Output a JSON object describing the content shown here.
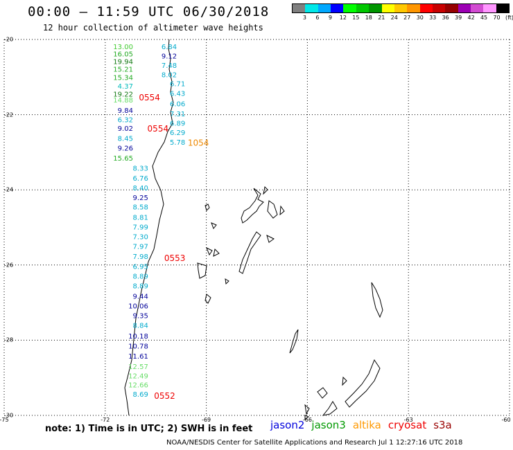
{
  "header": {
    "title": "00:00 – 11:59 UTC 06/30/2018",
    "subtitle": "12 hour collection of altimeter wave heights"
  },
  "legend": {
    "colors": [
      "#808080",
      "#00e8e8",
      "#00a8ff",
      "#0000ff",
      "#00ff00",
      "#00c800",
      "#009600",
      "#ffff00",
      "#ffc800",
      "#ff9600",
      "#ff0000",
      "#c80000",
      "#960000",
      "#9c00b4",
      "#d24cd2",
      "#ff96ff",
      "#000000"
    ],
    "labels": [
      "3",
      "6",
      "9",
      "12",
      "15",
      "18",
      "21",
      "24",
      "27",
      "30",
      "33",
      "36",
      "39",
      "42",
      "45",
      "70",
      "(ft)"
    ]
  },
  "axes": {
    "lat_ticks": [
      "-20",
      "-22",
      "-24",
      "-26",
      "-28",
      "-30"
    ],
    "lon_ticks": [
      "-75",
      "-72",
      "-69",
      "-66",
      "-63",
      "-60"
    ]
  },
  "observations": [
    {
      "lat": -20.18,
      "lon": -71.75,
      "value": "13.00",
      "color": "#44cc33"
    },
    {
      "lat": -20.38,
      "lon": -71.75,
      "value": "16.05",
      "color": "#22aa22"
    },
    {
      "lat": -20.58,
      "lon": -71.75,
      "value": "19.94",
      "color": "#117711"
    },
    {
      "lat": -20.78,
      "lon": -71.75,
      "value": "15.21",
      "color": "#22aa22"
    },
    {
      "lat": -21.0,
      "lon": -71.75,
      "value": "15.34",
      "color": "#22aa22"
    },
    {
      "lat": -21.23,
      "lon": -71.75,
      "value": "4.37",
      "color": "#00bbbb"
    },
    {
      "lat": -21.45,
      "lon": -71.75,
      "value": "19.22",
      "color": "#117711"
    },
    {
      "lat": -21.6,
      "lon": -71.75,
      "value": "14.88",
      "color": "#66dd66"
    },
    {
      "lat": -21.88,
      "lon": -71.75,
      "value": "9.84",
      "color": "#000099"
    },
    {
      "lat": -22.13,
      "lon": -71.75,
      "value": "6.32",
      "color": "#00aacc"
    },
    {
      "lat": -22.36,
      "lon": -71.75,
      "value": "9.02",
      "color": "#000099"
    },
    {
      "lat": -22.62,
      "lon": -71.75,
      "value": "8.45",
      "color": "#00aacc"
    },
    {
      "lat": -22.88,
      "lon": -71.75,
      "value": "9.26",
      "color": "#000099"
    },
    {
      "lat": -23.15,
      "lon": -71.75,
      "value": "15.65",
      "color": "#22aa22"
    },
    {
      "lat": -23.42,
      "lon": -71.3,
      "value": "8.33",
      "color": "#00aacc"
    },
    {
      "lat": -23.68,
      "lon": -71.3,
      "value": "6.76",
      "color": "#00aacc"
    },
    {
      "lat": -23.94,
      "lon": -71.3,
      "value": "8.40",
      "color": "#00aacc"
    },
    {
      "lat": -24.2,
      "lon": -71.3,
      "value": "9.25",
      "color": "#000099"
    },
    {
      "lat": -24.45,
      "lon": -71.3,
      "value": "8.58",
      "color": "#00aacc"
    },
    {
      "lat": -24.72,
      "lon": -71.3,
      "value": "8.81",
      "color": "#00aacc"
    },
    {
      "lat": -24.98,
      "lon": -71.3,
      "value": "7.99",
      "color": "#00aacc"
    },
    {
      "lat": -25.24,
      "lon": -71.3,
      "value": "7.30",
      "color": "#00aacc"
    },
    {
      "lat": -25.5,
      "lon": -71.3,
      "value": "7.97",
      "color": "#00aacc"
    },
    {
      "lat": -25.76,
      "lon": -71.3,
      "value": "7.98",
      "color": "#00aacc"
    },
    {
      "lat": -26.03,
      "lon": -71.3,
      "value": "6.95",
      "color": "#00aacc"
    },
    {
      "lat": -26.29,
      "lon": -71.3,
      "value": "8.89",
      "color": "#00aacc"
    },
    {
      "lat": -26.55,
      "lon": -71.3,
      "value": "8.89",
      "color": "#00aacc"
    },
    {
      "lat": -26.82,
      "lon": -71.3,
      "value": "9.44",
      "color": "#000099"
    },
    {
      "lat": -27.08,
      "lon": -71.3,
      "value": "10.06",
      "color": "#000099"
    },
    {
      "lat": -27.34,
      "lon": -71.3,
      "value": "9.35",
      "color": "#000099"
    },
    {
      "lat": -27.6,
      "lon": -71.3,
      "value": "8.84",
      "color": "#00aacc"
    },
    {
      "lat": -27.88,
      "lon": -71.3,
      "value": "10.18",
      "color": "#000099"
    },
    {
      "lat": -28.15,
      "lon": -71.3,
      "value": "10.78",
      "color": "#000099"
    },
    {
      "lat": -28.42,
      "lon": -71.3,
      "value": "11.61",
      "color": "#000099"
    },
    {
      "lat": -28.69,
      "lon": -71.3,
      "value": "12.57",
      "color": "#66dd66"
    },
    {
      "lat": -28.94,
      "lon": -71.3,
      "value": "12.49",
      "color": "#66dd66"
    },
    {
      "lat": -29.18,
      "lon": -71.3,
      "value": "12.66",
      "color": "#66dd66"
    },
    {
      "lat": -29.43,
      "lon": -71.3,
      "value": "8.69",
      "color": "#00aacc"
    },
    {
      "lat": -20.18,
      "lon": -70.45,
      "value": "6.84",
      "color": "#00aacc"
    },
    {
      "lat": -20.43,
      "lon": -70.45,
      "value": "9.12",
      "color": "#000099"
    },
    {
      "lat": -20.68,
      "lon": -70.45,
      "value": "7.48",
      "color": "#00aacc"
    },
    {
      "lat": -20.93,
      "lon": -70.45,
      "value": "8.02",
      "color": "#00aacc"
    },
    {
      "lat": -21.17,
      "lon": -70.2,
      "value": "6.71",
      "color": "#00aacc"
    },
    {
      "lat": -21.43,
      "lon": -70.2,
      "value": "6.43",
      "color": "#00aacc"
    },
    {
      "lat": -21.7,
      "lon": -70.2,
      "value": "6.06",
      "color": "#00aacc"
    },
    {
      "lat": -21.97,
      "lon": -70.2,
      "value": "7.31",
      "color": "#00aacc"
    },
    {
      "lat": -22.22,
      "lon": -70.2,
      "value": "6.89",
      "color": "#00aacc"
    },
    {
      "lat": -22.47,
      "lon": -70.2,
      "value": "6.29",
      "color": "#00aacc"
    },
    {
      "lat": -22.73,
      "lon": -70.2,
      "value": "5.78",
      "color": "#00aacc"
    }
  ],
  "pass_labels": [
    {
      "lat": -21.55,
      "lon": -71.0,
      "text": "0554",
      "color": "#ee0000"
    },
    {
      "lat": -22.38,
      "lon": -70.75,
      "text": "0554",
      "color": "#ee0000"
    },
    {
      "lat": -22.75,
      "lon": -69.55,
      "text": "1054",
      "color": "#ee8800"
    },
    {
      "lat": -25.82,
      "lon": -70.25,
      "text": "0553",
      "color": "#ee0000"
    },
    {
      "lat": -29.48,
      "lon": -70.55,
      "text": "0552",
      "color": "#ee0000"
    }
  ],
  "note": "note: 1) Time is in UTC; 2) SWH is in feet",
  "satellites": [
    {
      "name": "jason2",
      "color": "#0000dd"
    },
    {
      "name": "jason3",
      "color": "#009900"
    },
    {
      "name": "altika",
      "color": "#ff9900"
    },
    {
      "name": "cryosat",
      "color": "#ee0000"
    },
    {
      "name": "s3a",
      "color": "#990000"
    }
  ],
  "credit": "NOAA/NESDIS Center for Satellite Applications and Research   Jul  1 12:27:16 UTC 2018"
}
